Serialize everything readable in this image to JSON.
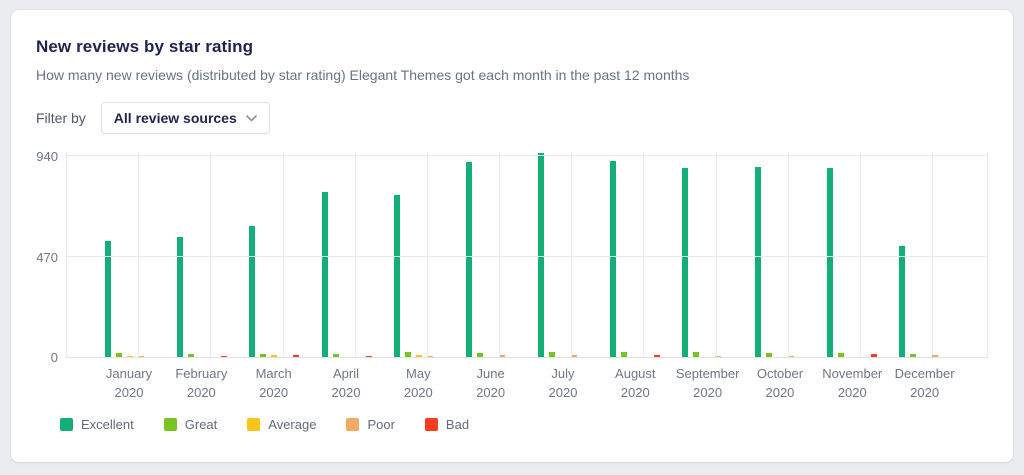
{
  "card": {
    "title": "New reviews by star rating",
    "subtitle": "How many new reviews (distributed by star rating) Elegant Themes got each month in the past 12 months",
    "filter": {
      "label": "Filter by",
      "selected_value": "All review sources",
      "chevron_icon": "chevron-down"
    }
  },
  "colors": {
    "excellent": "#12b076",
    "great": "#77c420",
    "average": "#fcc418",
    "poor": "#f4aa63",
    "bad": "#f93d20"
  },
  "chart_data": {
    "type": "bar",
    "title": "New reviews by star rating",
    "categories": [
      {
        "month": "January",
        "year": "2020"
      },
      {
        "month": "February",
        "year": "2020"
      },
      {
        "month": "March",
        "year": "2020"
      },
      {
        "month": "April",
        "year": "2020"
      },
      {
        "month": "May",
        "year": "2020"
      },
      {
        "month": "June",
        "year": "2020"
      },
      {
        "month": "July",
        "year": "2020"
      },
      {
        "month": "August",
        "year": "2020"
      },
      {
        "month": "September",
        "year": "2020"
      },
      {
        "month": "October",
        "year": "2020"
      },
      {
        "month": "November",
        "year": "2020"
      },
      {
        "month": "December",
        "year": "2020"
      }
    ],
    "series": [
      {
        "name": "Excellent",
        "color": "#12b076",
        "values": [
          545,
          560,
          615,
          775,
          760,
          915,
          955,
          920,
          885,
          890,
          885,
          520
        ]
      },
      {
        "name": "Great",
        "color": "#77c420",
        "values": [
          18,
          15,
          15,
          15,
          22,
          19,
          22,
          22,
          22,
          19,
          19,
          12
        ]
      },
      {
        "name": "Average",
        "color": "#fcc418",
        "values": [
          5,
          0,
          11,
          0,
          8,
          0,
          0,
          0,
          0,
          0,
          0,
          0
        ]
      },
      {
        "name": "Poor",
        "color": "#f4aa63",
        "values": [
          5,
          0,
          0,
          0,
          3,
          8,
          8,
          0,
          7,
          7,
          0,
          9
        ]
      },
      {
        "name": "Bad",
        "color": "#f93d20",
        "values": [
          0,
          2,
          8,
          7,
          0,
          0,
          0,
          9,
          0,
          0,
          12,
          0
        ]
      }
    ],
    "yticks": [
      0,
      470,
      940
    ],
    "ylim": [
      0,
      960
    ],
    "grid": true,
    "legend_position": "bottom"
  }
}
